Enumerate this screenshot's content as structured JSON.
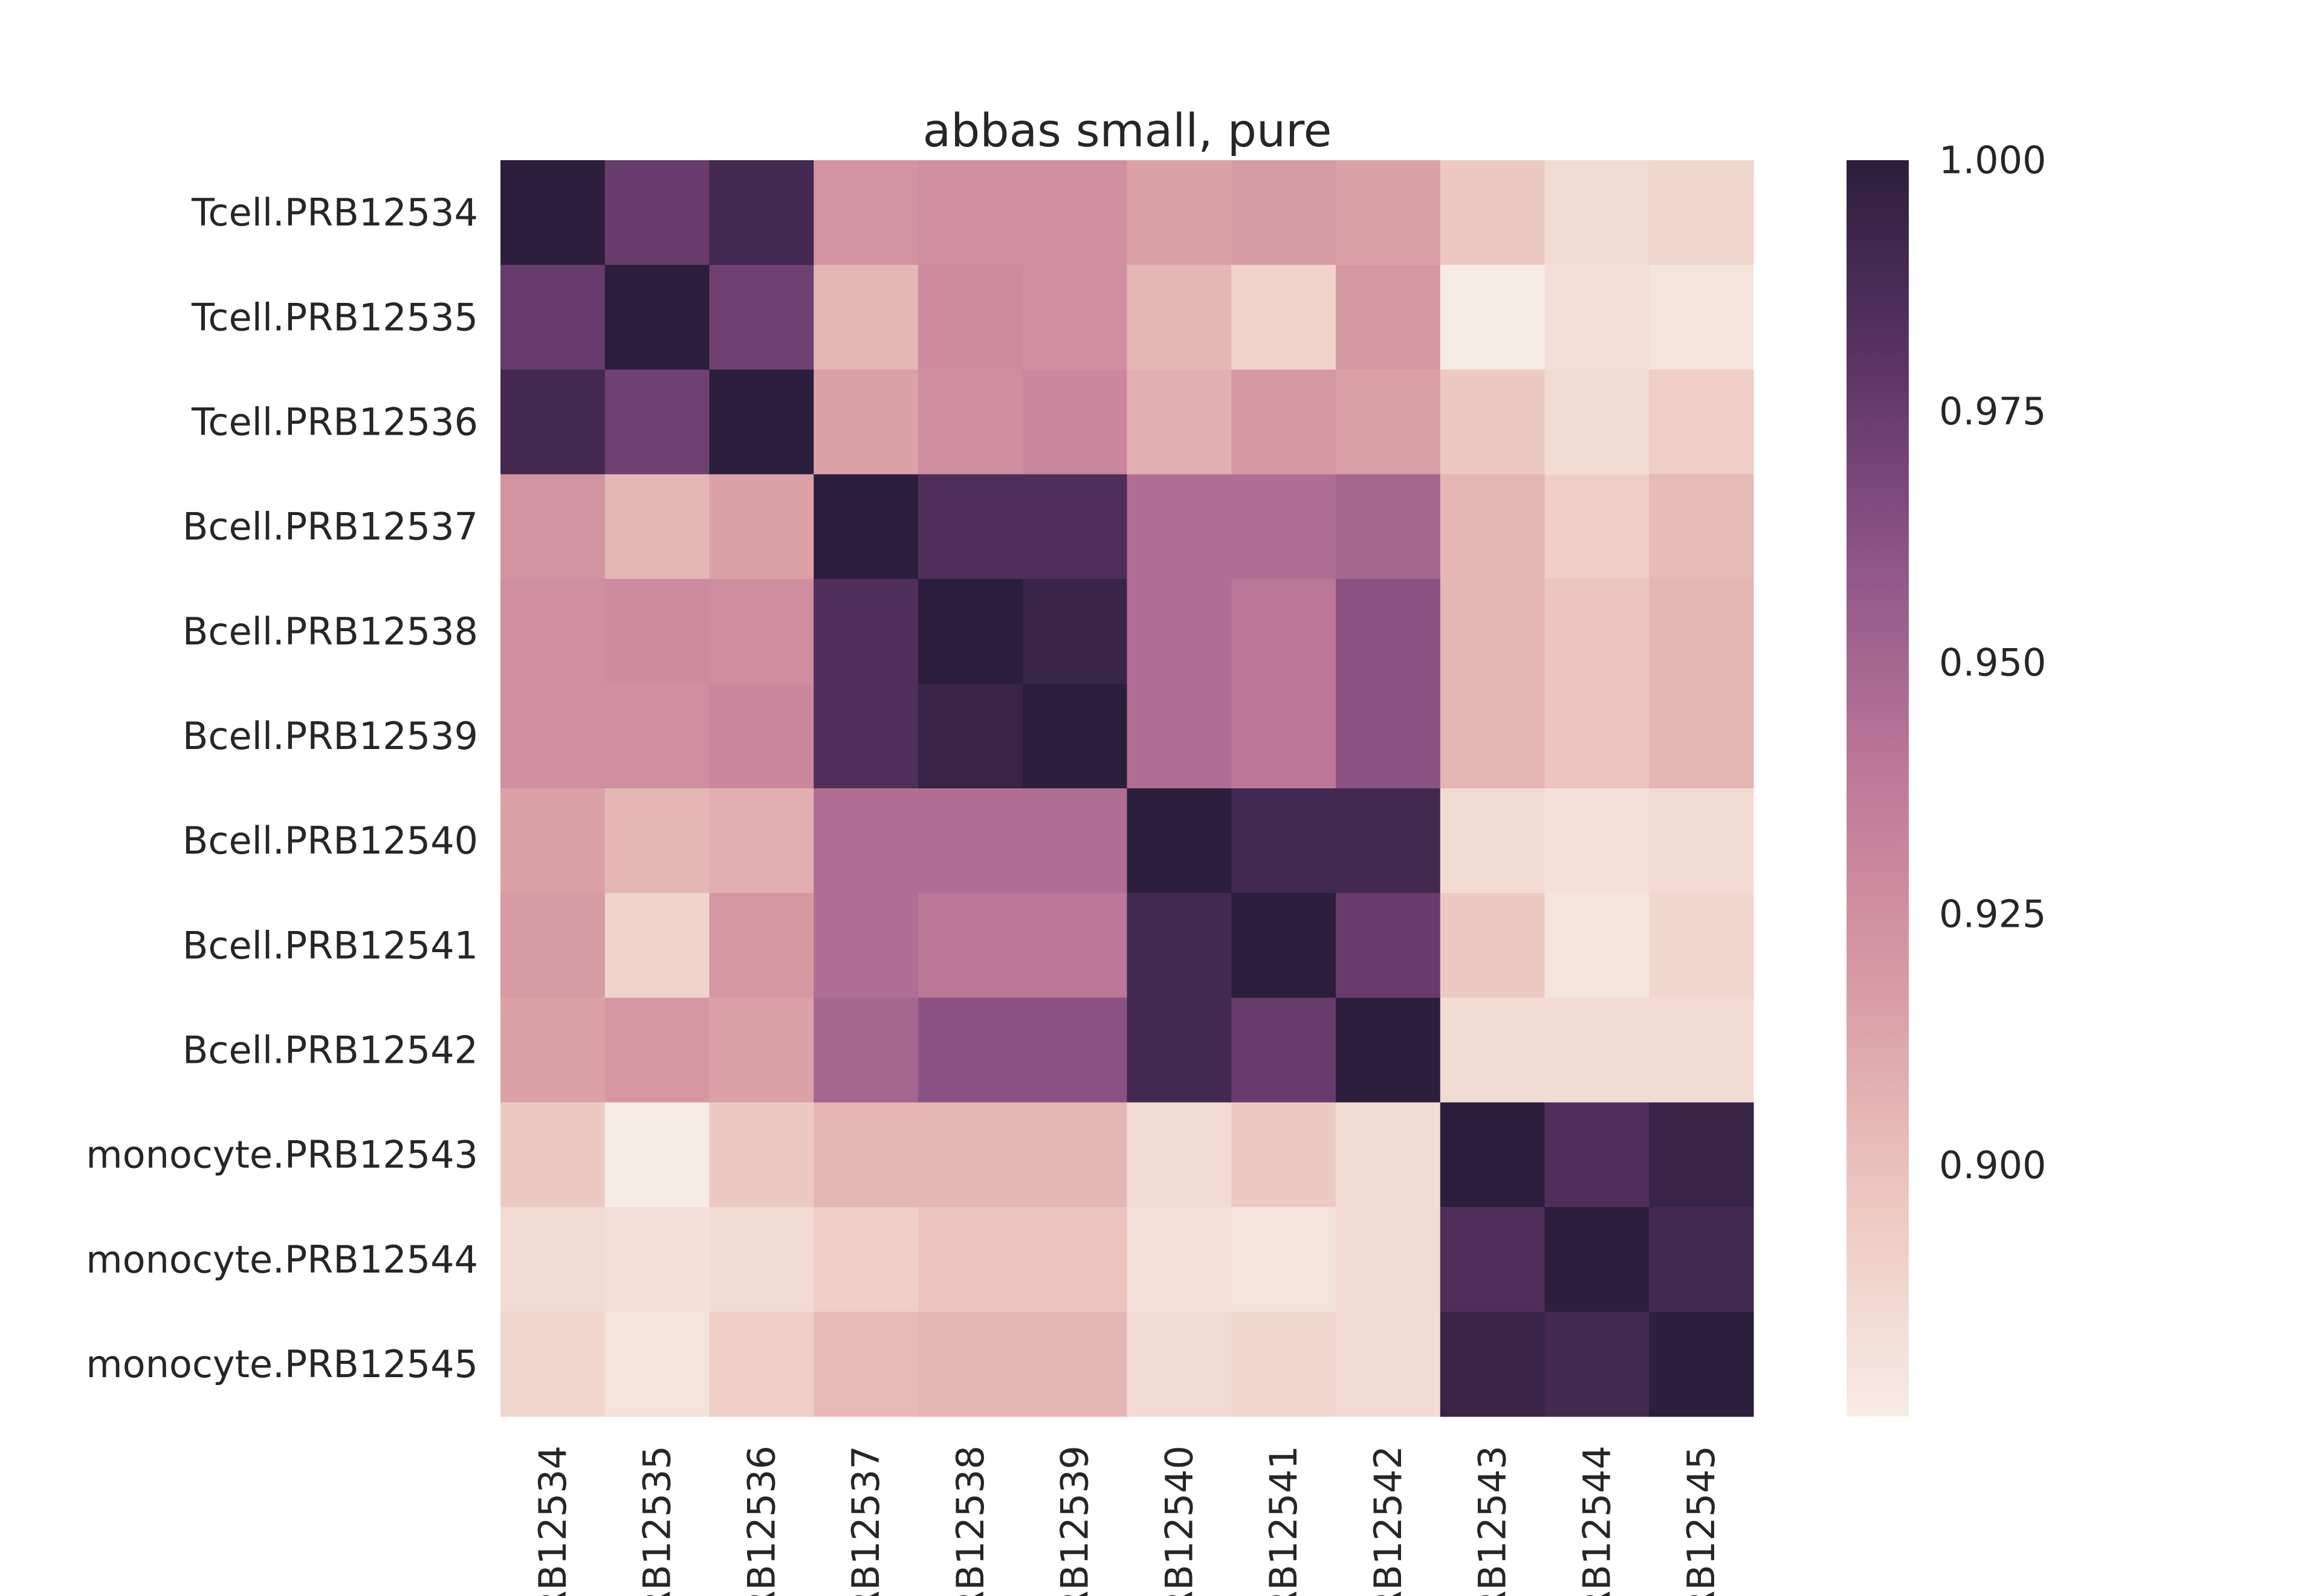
{
  "chart_data": {
    "type": "heatmap",
    "title": "abbas small, pure",
    "row_labels": [
      "Tcell.PRB12534",
      "Tcell.PRB12535",
      "Tcell.PRB12536",
      "Bcell.PRB12537",
      "Bcell.PRB12538",
      "Bcell.PRB12539",
      "Bcell.PRB12540",
      "Bcell.PRB12541",
      "Bcell.PRB12542",
      "monocyte.PRB12543",
      "monocyte.PRB12544",
      "monocyte.PRB12545"
    ],
    "col_labels": [
      "RB12534",
      "RB12535",
      "RB12536",
      "RB12537",
      "RB12538",
      "RB12539",
      "RB12540",
      "RB12541",
      "RB12542",
      "RB12543",
      "RB12544",
      "RB12545"
    ],
    "values": [
      [
        1.0,
        0.975,
        0.99,
        0.922,
        0.925,
        0.925,
        0.915,
        0.918,
        0.915,
        0.895,
        0.885,
        0.888
      ],
      [
        0.975,
        1.0,
        0.972,
        0.905,
        0.928,
        0.925,
        0.905,
        0.89,
        0.92,
        0.875,
        0.883,
        0.88
      ],
      [
        0.99,
        0.972,
        1.0,
        0.915,
        0.926,
        0.93,
        0.908,
        0.92,
        0.915,
        0.895,
        0.885,
        0.893
      ],
      [
        0.922,
        0.905,
        0.915,
        1.0,
        0.985,
        0.985,
        0.945,
        0.945,
        0.95,
        0.905,
        0.893,
        0.903
      ],
      [
        0.925,
        0.928,
        0.926,
        0.985,
        1.0,
        0.995,
        0.945,
        0.94,
        0.962,
        0.905,
        0.898,
        0.905
      ],
      [
        0.925,
        0.925,
        0.93,
        0.985,
        0.995,
        1.0,
        0.945,
        0.94,
        0.962,
        0.905,
        0.898,
        0.905
      ],
      [
        0.915,
        0.905,
        0.908,
        0.945,
        0.945,
        0.945,
        1.0,
        0.99,
        0.99,
        0.885,
        0.882,
        0.885
      ],
      [
        0.918,
        0.89,
        0.92,
        0.945,
        0.94,
        0.94,
        0.99,
        1.0,
        0.975,
        0.895,
        0.88,
        0.888
      ],
      [
        0.915,
        0.92,
        0.915,
        0.95,
        0.962,
        0.962,
        0.99,
        0.975,
        1.0,
        0.885,
        0.885,
        0.885
      ],
      [
        0.895,
        0.875,
        0.895,
        0.905,
        0.905,
        0.905,
        0.885,
        0.895,
        0.885,
        1.0,
        0.985,
        0.995
      ],
      [
        0.885,
        0.883,
        0.885,
        0.893,
        0.898,
        0.898,
        0.882,
        0.88,
        0.885,
        0.985,
        1.0,
        0.99
      ],
      [
        0.888,
        0.88,
        0.893,
        0.903,
        0.905,
        0.905,
        0.885,
        0.888,
        0.885,
        0.995,
        0.99,
        1.0
      ]
    ],
    "colorbar": {
      "min": 0.875,
      "max": 1.0,
      "ticks": [
        0.9,
        0.925,
        0.95,
        0.975,
        1.0
      ],
      "tick_labels": [
        "0.900",
        "0.925",
        "0.950",
        "0.975",
        "1.000"
      ]
    },
    "colormap": [
      "#f7ece5",
      "#edc9c0",
      "#d99da5",
      "#c17b99",
      "#93588a",
      "#5c3565",
      "#2c1e3d"
    ],
    "grid": false,
    "legend": "colorbar-right"
  }
}
